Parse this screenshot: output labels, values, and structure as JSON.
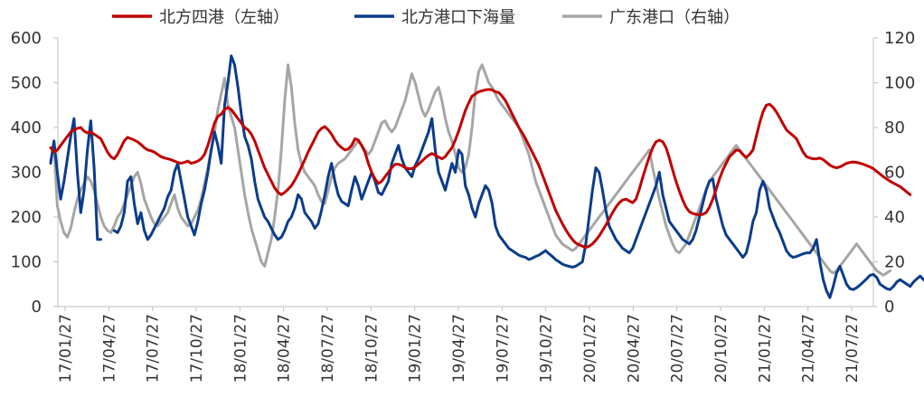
{
  "chart_data": {
    "type": "line",
    "title": "",
    "xlabel": "",
    "ylabel": "",
    "x_tick_labels": [
      "17/01/27",
      "17/04/27",
      "17/07/27",
      "17/10/27",
      "18/01/27",
      "18/04/27",
      "18/07/27",
      "18/10/27",
      "19/01/27",
      "19/04/27",
      "19/07/27",
      "19/10/27",
      "20/01/27",
      "20/04/27",
      "20/07/27",
      "20/10/27",
      "21/01/27",
      "21/04/27",
      "21/07/27"
    ],
    "y_left": {
      "label": "",
      "ylim": [
        0,
        600
      ],
      "ticks": [
        0,
        100,
        200,
        300,
        400,
        500,
        600
      ]
    },
    "y_right": {
      "label": "",
      "ylim": [
        0,
        120
      ],
      "ticks": [
        0,
        20,
        40,
        60,
        80,
        100,
        120
      ]
    },
    "grid": false,
    "legend_position": "top",
    "x_range": [
      0,
      246
    ],
    "series": [
      {
        "name": "北方四港（左轴）",
        "axis": "left",
        "color": "#c00000",
        "values": [
          355,
          345,
          350,
          360,
          370,
          380,
          390,
          395,
          398,
          400,
          392,
          388,
          390,
          385,
          380,
          375,
          360,
          345,
          335,
          330,
          340,
          355,
          370,
          378,
          375,
          372,
          368,
          362,
          355,
          350,
          348,
          345,
          340,
          335,
          332,
          330,
          328,
          325,
          322,
          320,
          322,
          325,
          320,
          322,
          325,
          330,
          340,
          360,
          385,
          410,
          425,
          430,
          440,
          445,
          440,
          430,
          420,
          410,
          400,
          395,
          385,
          370,
          350,
          330,
          310,
          295,
          280,
          265,
          255,
          250,
          255,
          262,
          270,
          282,
          296,
          312,
          328,
          345,
          360,
          375,
          390,
          398,
          402,
          395,
          385,
          372,
          362,
          355,
          350,
          352,
          360,
          375,
          372,
          360,
          345,
          320,
          300,
          285,
          275,
          280,
          290,
          300,
          310,
          318,
          318,
          315,
          310,
          308,
          308,
          312,
          318,
          325,
          332,
          338,
          342,
          338,
          334,
          330,
          335,
          345,
          355,
          372,
          392,
          415,
          438,
          455,
          470,
          475,
          480,
          482,
          484,
          485,
          484,
          480,
          478,
          470,
          460,
          445,
          430,
          415,
          400,
          388,
          375,
          360,
          345,
          330,
          315,
          295,
          275,
          255,
          235,
          215,
          200,
          185,
          172,
          160,
          150,
          142,
          138,
          135,
          132,
          135,
          140,
          148,
          158,
          170,
          182,
          196,
          210,
          222,
          232,
          238,
          240,
          236,
          232,
          240,
          262,
          288,
          312,
          335,
          355,
          368,
          372,
          368,
          355,
          332,
          305,
          280,
          258,
          238,
          222,
          212,
          208,
          206,
          205,
          206,
          210,
          222,
          240,
          262,
          285,
          305,
          320,
          335,
          342,
          350,
          348,
          340,
          333,
          340,
          350,
          380,
          410,
          435,
          450,
          452,
          445,
          435,
          422,
          408,
          395,
          388,
          382,
          375,
          360,
          345,
          335,
          332,
          330,
          330,
          332,
          328,
          322,
          316,
          312,
          310,
          312,
          316,
          320,
          322,
          323,
          322,
          320,
          318,
          315,
          312,
          308,
          302,
          296,
          290,
          285,
          280,
          276,
          272,
          268,
          262,
          256,
          250
        ]
      },
      {
        "name": "北方港口下海量",
        "axis": "left",
        "color": "#0b3c8c",
        "values": [
          320,
          370,
          300,
          240,
          280,
          330,
          380,
          420,
          300,
          210,
          260,
          350,
          415,
          310,
          150,
          150,
          null,
          null,
          null,
          170,
          165,
          180,
          210,
          280,
          290,
          230,
          185,
          210,
          170,
          150,
          160,
          175,
          190,
          205,
          220,
          245,
          260,
          300,
          320,
          280,
          240,
          200,
          180,
          160,
          190,
          230,
          260,
          300,
          350,
          390,
          360,
          320,
          450,
          500,
          560,
          540,
          490,
          430,
          380,
          360,
          330,
          280,
          240,
          220,
          200,
          190,
          175,
          160,
          150,
          155,
          170,
          190,
          200,
          220,
          250,
          240,
          210,
          200,
          190,
          175,
          185,
          215,
          250,
          290,
          320,
          280,
          250,
          235,
          230,
          225,
          260,
          290,
          270,
          240,
          260,
          280,
          300,
          280,
          255,
          250,
          265,
          280,
          320,
          340,
          360,
          330,
          310,
          300,
          290,
          315,
          330,
          350,
          370,
          390,
          420,
          350,
          300,
          280,
          260,
          290,
          320,
          300,
          350,
          340,
          270,
          250,
          220,
          200,
          230,
          250,
          270,
          260,
          230,
          180,
          160,
          150,
          140,
          130,
          125,
          120,
          115,
          112,
          110,
          105,
          108,
          112,
          115,
          120,
          125,
          118,
          112,
          105,
          100,
          95,
          92,
          90,
          88,
          90,
          95,
          100,
          140,
          200,
          260,
          310,
          300,
          260,
          215,
          180,
          165,
          150,
          140,
          130,
          125,
          120,
          130,
          150,
          170,
          190,
          210,
          230,
          250,
          270,
          300,
          250,
          220,
          190,
          180,
          170,
          160,
          150,
          145,
          140,
          150,
          170,
          200,
          230,
          260,
          280,
          285,
          240,
          210,
          180,
          160,
          150,
          140,
          130,
          120,
          110,
          120,
          150,
          190,
          210,
          260,
          280,
          260,
          220,
          200,
          180,
          165,
          145,
          125,
          115,
          110,
          112,
          115,
          118,
          120,
          120,
          130,
          150,
          100,
          60,
          35,
          20,
          45,
          75,
          90,
          70,
          50,
          40,
          38,
          42,
          48,
          55,
          62,
          70,
          72,
          65,
          50,
          45,
          40,
          38,
          45,
          55,
          60,
          55,
          50,
          45,
          55,
          62,
          68,
          60,
          55,
          50,
          45
        ]
      },
      {
        "name": "广东港口（右轴）",
        "axis": "right",
        "color": "#a6a6a6",
        "values": [
          65,
          72,
          45,
          38,
          33,
          31,
          35,
          42,
          48,
          52,
          55,
          58,
          56,
          52,
          46,
          40,
          36,
          34,
          33,
          36,
          40,
          42,
          46,
          50,
          54,
          58,
          60,
          55,
          48,
          44,
          40,
          37,
          36,
          38,
          40,
          42,
          46,
          50,
          44,
          40,
          38,
          36,
          37,
          40,
          43,
          48,
          55,
          62,
          70,
          78,
          88,
          95,
          102,
          90,
          85,
          80,
          70,
          60,
          50,
          42,
          35,
          30,
          25,
          20,
          18,
          24,
          30,
          40,
          52,
          70,
          92,
          108,
          98,
          82,
          70,
          64,
          60,
          58,
          56,
          54,
          50,
          47,
          46,
          52,
          58,
          62,
          64,
          65,
          66,
          68,
          70,
          72,
          74,
          72,
          70,
          68,
          70,
          74,
          78,
          82,
          83,
          80,
          78,
          80,
          84,
          88,
          92,
          98,
          104,
          100,
          94,
          88,
          85,
          88,
          92,
          96,
          98,
          92,
          84,
          78,
          74,
          68,
          62,
          60,
          62,
          68,
          80,
          96,
          105,
          108,
          104,
          100,
          98,
          95,
          92,
          90,
          88,
          86,
          84,
          82,
          80,
          76,
          72,
          68,
          62,
          56,
          52,
          48,
          44,
          40,
          36,
          32,
          30,
          28,
          27,
          26,
          25,
          26,
          28,
          30,
          32,
          34,
          36,
          38,
          40,
          42,
          44,
          46,
          48,
          50,
          52,
          54,
          56,
          58,
          60,
          62,
          64,
          66,
          68,
          70,
          62,
          55,
          48,
          42,
          36,
          32,
          28,
          25,
          24,
          26,
          28,
          32,
          36,
          40,
          44,
          48,
          52,
          56,
          58,
          60,
          62,
          64,
          66,
          68,
          70,
          72,
          70,
          68,
          66,
          64,
          62,
          60,
          58,
          56,
          54,
          52,
          50,
          48,
          46,
          44,
          42,
          40,
          38,
          36,
          34,
          32,
          30,
          28,
          26,
          24,
          22,
          20,
          18,
          16,
          15,
          16,
          18,
          20,
          22,
          24,
          26,
          28,
          26,
          24,
          22,
          20,
          18,
          16,
          15,
          14,
          15,
          16
        ]
      }
    ]
  }
}
